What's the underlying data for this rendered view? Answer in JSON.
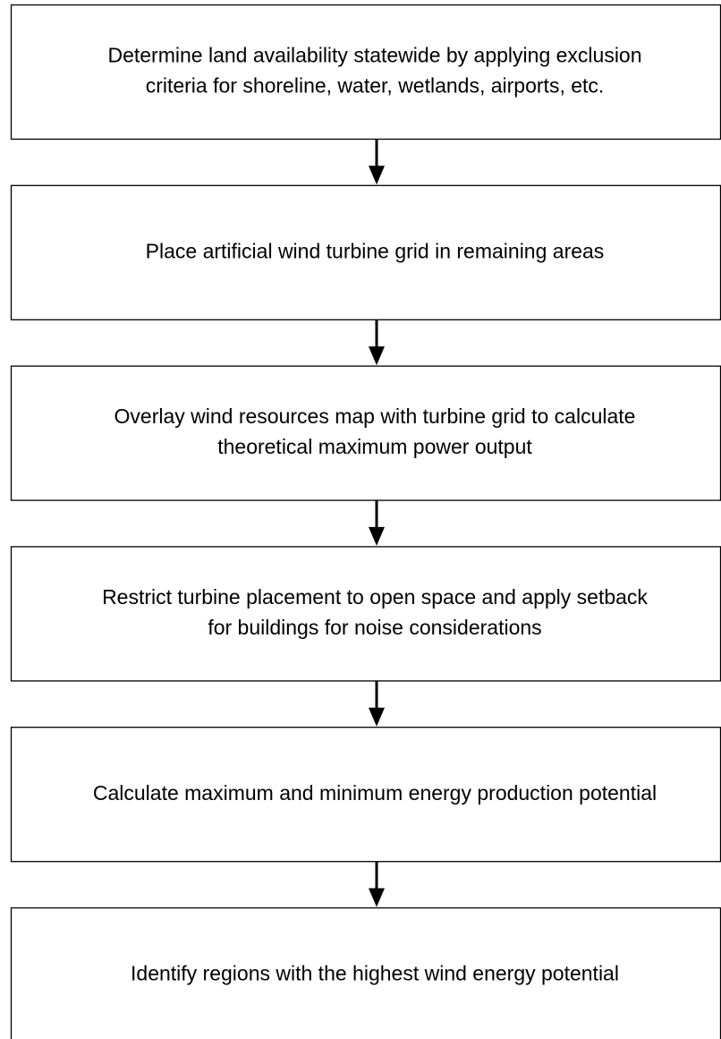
{
  "nodes": [
    {
      "lines": [
        "Determine land availability statewide by applying exclusion",
        "criteria for shoreline, water, wetlands, airports, etc."
      ]
    },
    {
      "lines": [
        "Place artificial wind turbine grid in remaining areas"
      ]
    },
    {
      "lines": [
        "Overlay wind resources map with turbine grid to calculate",
        "theoretical maximum power output"
      ]
    },
    {
      "lines": [
        "Restrict turbine placement to open space and apply setback",
        "for buildings for noise considerations"
      ]
    },
    {
      "lines": [
        "Calculate maximum and minimum energy production potential"
      ]
    },
    {
      "lines": [
        "Identify regions with the highest wind energy potential"
      ]
    }
  ]
}
